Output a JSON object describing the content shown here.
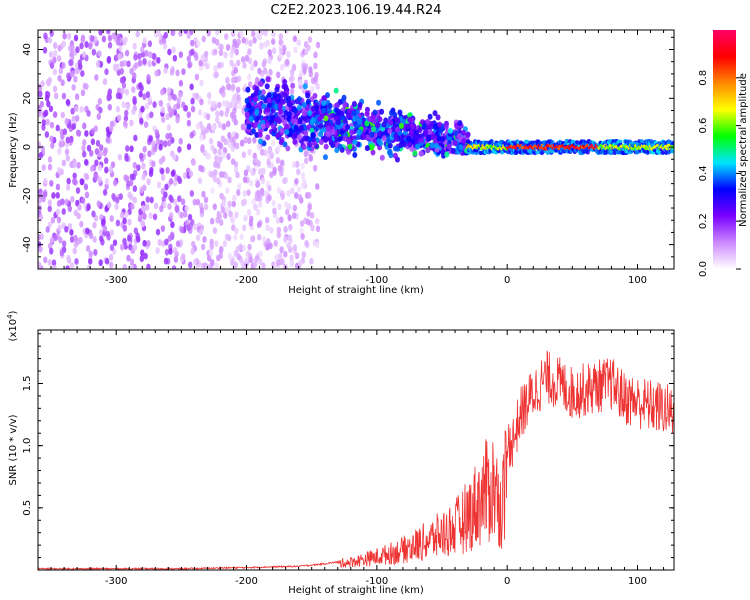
{
  "title": "C2E2.2023.106.19.44.R24",
  "colors": {
    "line": "#ee3333",
    "axis": "#000000",
    "background": "#ffffff"
  },
  "chart_data": [
    {
      "type": "heatmap",
      "xlabel": "Height of straight line (km)",
      "ylabel": "Frequency (Hz)",
      "xlim": [
        -360,
        128
      ],
      "ylim": [
        -50,
        48
      ],
      "xticks": [
        -300,
        -200,
        -100,
        0,
        100
      ],
      "yticks": [
        -40,
        -20,
        0,
        20,
        40
      ],
      "grid": false,
      "colorbar": {
        "label": "Normalized spectral amplitude",
        "range": [
          0.0,
          1.0
        ],
        "ticks": [
          "0.0",
          "0.2",
          "0.4",
          "0.6",
          "0.8"
        ],
        "colormap": [
          "#ffffff",
          "#cc88ff",
          "#7a00ff",
          "#0000ff",
          "#00e5ff",
          "#00ff00",
          "#ffff00",
          "#ff8800",
          "#ff0000",
          "#ff0066"
        ]
      },
      "features": [
        {
          "description": "scattered weak echoes",
          "x_range": [
            -360,
            -145
          ],
          "freq_range": [
            -50,
            48
          ],
          "amplitude": 0.15
        },
        {
          "description": "main echo band",
          "x_range": [
            -200,
            -30
          ],
          "freq_center_start": 15,
          "freq_center_end": 2,
          "amplitude": 0.3
        },
        {
          "description": "narrow strong band",
          "x_range": [
            -30,
            128
          ],
          "freq_center": 0,
          "amplitude": 0.85
        }
      ]
    },
    {
      "type": "line",
      "xlabel": "Height of straight line (km)",
      "ylabel": "SNR (10 * v/v)",
      "y_multiplier": "(x10",
      "y_multiplier_exp": "4",
      "xlim": [
        -360,
        128
      ],
      "ylim": [
        0,
        1.93
      ],
      "xticks": [
        -300,
        -200,
        -100,
        0,
        100
      ],
      "yticks": [
        "0.5",
        "1.0",
        "1.5"
      ],
      "grid": false,
      "series": [
        {
          "x": [
            -360,
            -300,
            -250,
            -200,
            -160,
            -140,
            -120,
            -100,
            -80,
            -60,
            -40,
            -30,
            -20,
            -15,
            -10,
            -5,
            0,
            5,
            10,
            20,
            30,
            40,
            50,
            60,
            70,
            80,
            90,
            100,
            110,
            120,
            128
          ],
          "y": [
            0.01,
            0.01,
            0.01,
            0.02,
            0.03,
            0.05,
            0.08,
            0.13,
            0.2,
            0.3,
            0.42,
            0.55,
            0.72,
            0.8,
            0.85,
            0.6,
            1.0,
            1.05,
            1.25,
            1.42,
            1.55,
            1.5,
            1.42,
            1.45,
            1.48,
            1.5,
            1.38,
            1.35,
            1.32,
            1.3,
            1.25
          ]
        }
      ]
    }
  ]
}
